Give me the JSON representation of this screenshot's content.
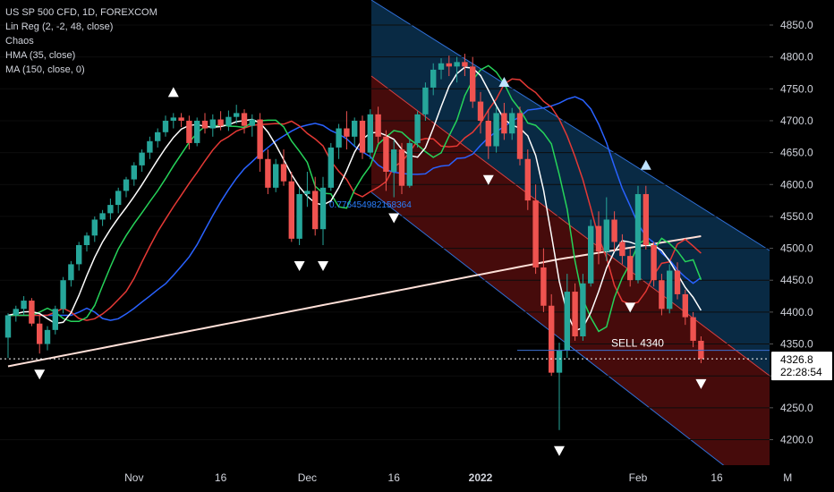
{
  "legend": {
    "symbol": "US SP 500 CFD, 1D, FOREXCOM",
    "ind1": "Lin Reg (2, -2, 48, close)",
    "ind2": "Chaos",
    "ind3": "HMA (35, close)",
    "ind4": "MA (150, close, 0)"
  },
  "annotations": {
    "sell_label": "SELL 4340",
    "fib_label": "0.776454982158364"
  },
  "price_tags": {
    "last": "4326.8",
    "countdown": "22:28:54"
  },
  "colors": {
    "up": "#26a69a",
    "down": "#ef5350",
    "channel_upper": "#1565c0",
    "channel_lower": "#b71c1c",
    "hma": "#ffffff",
    "ma150": "#ffe0d8",
    "jaw": "#2962ff",
    "teeth": "#e53935",
    "lips": "#26d35a"
  },
  "chart_data": {
    "type": "candlestick",
    "symbol": "US SP 500 CFD",
    "timeframe": "1D",
    "y_axis": {
      "ticks": [
        4200.0,
        4250.0,
        4300.0,
        4350.0,
        4400.0,
        4450.0,
        4500.0,
        4550.0,
        4600.0,
        4650.0,
        4700.0,
        4750.0,
        4800.0,
        4850.0
      ],
      "tick_labels": [
        "4200.0",
        "4250.0",
        "4300.0",
        "4350.0",
        "4400.0",
        "4450.0",
        "4500.0",
        "4550.0",
        "4600.0",
        "4650.0",
        "4700.0",
        "4750.0",
        "4800.0",
        "4850.0"
      ],
      "range": [
        4160,
        4888
      ]
    },
    "x_axis": {
      "labels": [
        {
          "text": "Nov",
          "bar": 16
        },
        {
          "text": "16",
          "bar": 27
        },
        {
          "text": "Dec",
          "bar": 38
        },
        {
          "text": "16",
          "bar": 49
        },
        {
          "text": "2022",
          "bar": 60
        },
        {
          "text": "Feb",
          "bar": 80
        },
        {
          "text": "16",
          "bar": 90
        },
        {
          "text": "M",
          "bar": 99
        }
      ]
    },
    "candles": [
      [
        4360,
        4398,
        4328,
        4395
      ],
      [
        4395,
        4410,
        4385,
        4405
      ],
      [
        4405,
        4425,
        4395,
        4418
      ],
      [
        4418,
        4422,
        4378,
        4382
      ],
      [
        4382,
        4395,
        4335,
        4350
      ],
      [
        4350,
        4378,
        4340,
        4372
      ],
      [
        4372,
        4410,
        4365,
        4405
      ],
      [
        4405,
        4455,
        4398,
        4450
      ],
      [
        4450,
        4480,
        4440,
        4475
      ],
      [
        4475,
        4510,
        4465,
        4505
      ],
      [
        4505,
        4525,
        4495,
        4520
      ],
      [
        4520,
        4550,
        4510,
        4545
      ],
      [
        4545,
        4560,
        4535,
        4555
      ],
      [
        4555,
        4578,
        4545,
        4568
      ],
      [
        4568,
        4595,
        4555,
        4590
      ],
      [
        4590,
        4612,
        4580,
        4608
      ],
      [
        4608,
        4635,
        4598,
        4630
      ],
      [
        4630,
        4655,
        4620,
        4650
      ],
      [
        4650,
        4675,
        4640,
        4668
      ],
      [
        4668,
        4688,
        4658,
        4682
      ],
      [
        4682,
        4708,
        4675,
        4700
      ],
      [
        4700,
        4712,
        4688,
        4705
      ],
      [
        4705,
        4712,
        4690,
        4700
      ],
      [
        4700,
        4708,
        4655,
        4665
      ],
      [
        4665,
        4705,
        4660,
        4700
      ],
      [
        4700,
        4712,
        4680,
        4688
      ],
      [
        4688,
        4710,
        4675,
        4702
      ],
      [
        4702,
        4715,
        4685,
        4692
      ],
      [
        4692,
        4716,
        4684,
        4706
      ],
      [
        4706,
        4725,
        4695,
        4712
      ],
      [
        4712,
        4718,
        4680,
        4692
      ],
      [
        4692,
        4710,
        4675,
        4702
      ],
      [
        4702,
        4712,
        4620,
        4640
      ],
      [
        4640,
        4655,
        4585,
        4595
      ],
      [
        4595,
        4640,
        4588,
        4632
      ],
      [
        4632,
        4655,
        4598,
        4605
      ],
      [
        4605,
        4620,
        4510,
        4515
      ],
      [
        4515,
        4595,
        4505,
        4585
      ],
      [
        4585,
        4620,
        4565,
        4590
      ],
      [
        4590,
        4612,
        4520,
        4530
      ],
      [
        4530,
        4612,
        4505,
        4595
      ],
      [
        4595,
        4665,
        4590,
        4658
      ],
      [
        4658,
        4695,
        4640,
        4688
      ],
      [
        4688,
        4715,
        4655,
        4675
      ],
      [
        4675,
        4705,
        4660,
        4700
      ],
      [
        4700,
        4708,
        4640,
        4650
      ],
      [
        4650,
        4718,
        4640,
        4710
      ],
      [
        4710,
        4722,
        4665,
        4675
      ],
      [
        4675,
        4685,
        4590,
        4620
      ],
      [
        4620,
        4670,
        4580,
        4655
      ],
      [
        4655,
        4665,
        4585,
        4598
      ],
      [
        4598,
        4672,
        4595,
        4665
      ],
      [
        4665,
        4715,
        4658,
        4710
      ],
      [
        4710,
        4760,
        4700,
        4752
      ],
      [
        4752,
        4790,
        4740,
        4780
      ],
      [
        4780,
        4798,
        4765,
        4790
      ],
      [
        4790,
        4802,
        4770,
        4785
      ],
      [
        4785,
        4800,
        4760,
        4792
      ],
      [
        4792,
        4805,
        4770,
        4785
      ],
      [
        4785,
        4800,
        4720,
        4730
      ],
      [
        4730,
        4745,
        4680,
        4700
      ],
      [
        4700,
        4718,
        4640,
        4660
      ],
      [
        4660,
        4722,
        4650,
        4712
      ],
      [
        4712,
        4728,
        4670,
        4680
      ],
      [
        4680,
        4720,
        4670,
        4712
      ],
      [
        4712,
        4722,
        4630,
        4640
      ],
      [
        4640,
        4655,
        4560,
        4575
      ],
      [
        4575,
        4600,
        4460,
        4470
      ],
      [
        4470,
        4500,
        4400,
        4410
      ],
      [
        4410,
        4428,
        4300,
        4305
      ],
      [
        4305,
        4352,
        4215,
        4340
      ],
      [
        4340,
        4460,
        4328,
        4432
      ],
      [
        4432,
        4445,
        4355,
        4362
      ],
      [
        4362,
        4460,
        4355,
        4445
      ],
      [
        4445,
        4545,
        4440,
        4535
      ],
      [
        4535,
        4558,
        4475,
        4495
      ],
      [
        4495,
        4580,
        4480,
        4545
      ],
      [
        4545,
        4558,
        4495,
        4510
      ],
      [
        4510,
        4522,
        4475,
        4488
      ],
      [
        4488,
        4500,
        4440,
        4450
      ],
      [
        4450,
        4598,
        4445,
        4585
      ],
      [
        4585,
        4598,
        4498,
        4505
      ],
      [
        4505,
        4510,
        4440,
        4450
      ],
      [
        4450,
        4460,
        4395,
        4405
      ],
      [
        4405,
        4475,
        4398,
        4465
      ],
      [
        4465,
        4478,
        4420,
        4428
      ],
      [
        4428,
        4435,
        4380,
        4392
      ],
      [
        4392,
        4400,
        4345,
        4355
      ],
      [
        4355,
        4362,
        4320,
        4326.8
      ]
    ],
    "sell_level": 4340,
    "last_price": 4326.8
  }
}
